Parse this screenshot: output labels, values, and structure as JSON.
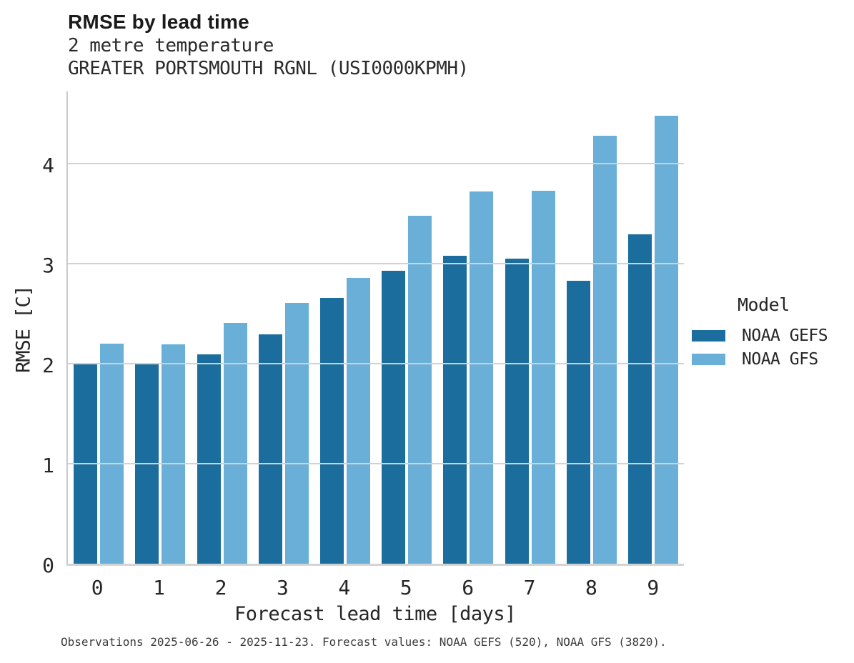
{
  "header": {
    "title": "RMSE by lead time",
    "subtitle_line1": "2 metre temperature",
    "subtitle_line2": "GREATER PORTSMOUTH RGNL (USI0000KPMH)"
  },
  "chart_data": {
    "type": "bar",
    "title": "RMSE by lead time",
    "subtitle": [
      "2 metre temperature",
      "GREATER PORTSMOUTH RGNL (USI0000KPMH)"
    ],
    "categories": [
      "0",
      "1",
      "2",
      "3",
      "4",
      "5",
      "6",
      "7",
      "8",
      "9"
    ],
    "series": [
      {
        "name": "NOAA GEFS",
        "color": "#1b6d9e",
        "values": [
          2.01,
          2.0,
          2.09,
          2.29,
          2.66,
          2.93,
          3.08,
          3.05,
          2.83,
          3.29
        ]
      },
      {
        "name": "NOAA GFS",
        "color": "#69afd8",
        "values": [
          2.2,
          2.19,
          2.41,
          2.61,
          2.86,
          3.48,
          3.72,
          3.73,
          4.28,
          4.48
        ]
      }
    ],
    "xlabel": "Forecast lead time [days]",
    "ylabel": "RMSE [C]",
    "ylim": [
      0,
      4.74
    ],
    "yticks": [
      0,
      1,
      2,
      3,
      4
    ],
    "grid": "horizontal-only",
    "legend_title": "Model",
    "legend_position": "right-center"
  },
  "axes": {
    "xlabel": "Forecast lead time [days]",
    "ylabel": "RMSE [C]"
  },
  "legend": {
    "title": "Model",
    "items": [
      {
        "label": "NOAA GEFS",
        "color": "#1b6d9e"
      },
      {
        "label": "NOAA GFS",
        "color": "#69afd8"
      }
    ]
  },
  "footer": {
    "text": "Observations 2025-06-26 - 2025-11-23. Forecast values: NOAA GEFS (520), NOAA GFS (3820)."
  },
  "colors": {
    "gefs_bar": "#1b6d9e",
    "gfs_bar": "#69afd8",
    "gridline": "#d2d2d2",
    "axis_spine": "#c9c9c9",
    "text": "#262626",
    "background": "#ffffff"
  }
}
